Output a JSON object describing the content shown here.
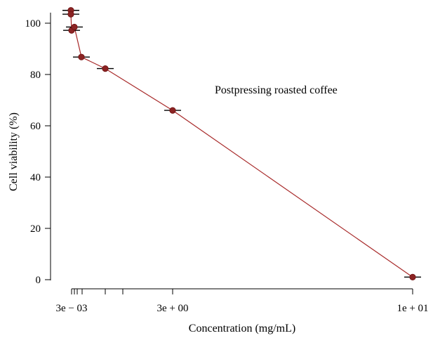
{
  "chart_data": {
    "type": "scatter",
    "title": "",
    "xlabel": "Concentration (mg/mL)",
    "ylabel": "Cell viability (%)",
    "annotation": "Postpressing roasted coffee",
    "ylim": [
      0,
      105
    ],
    "xlim": [
      0.0,
      10.0
    ],
    "yticks": [
      0,
      20,
      40,
      60,
      80,
      100
    ],
    "xticks": [
      {
        "value": 0.003,
        "label": "3e − 03"
      },
      {
        "value": 0.01,
        "label": ""
      },
      {
        "value": 0.03,
        "label": ""
      },
      {
        "value": 0.1,
        "label": ""
      },
      {
        "value": 0.3,
        "label": ""
      },
      {
        "value": 1.0,
        "label": ""
      },
      {
        "value": 3.0,
        "label": "3e + 00"
      },
      {
        "value": 10.0,
        "label": "1e + 01"
      }
    ],
    "series": [
      {
        "color": "#8b2323",
        "line_color": "#a82a2a",
        "points": [
          {
            "x": 0.0,
            "y": 105.0,
            "err": 0.12
          },
          {
            "x": 0.003,
            "y": 103.5,
            "err": 0.12
          },
          {
            "x": 0.01,
            "y": 97.2,
            "err": 0.12
          },
          {
            "x": 0.1,
            "y": 98.5,
            "err": 0.12
          },
          {
            "x": 0.4,
            "y": 86.8,
            "err": 0.12
          },
          {
            "x": 1.4,
            "y": 82.3,
            "err": 0.12
          },
          {
            "x": 4.5,
            "y": 66.0,
            "err": 0.12
          },
          {
            "x": 10.0,
            "y": 1.0,
            "err": 0.12
          }
        ]
      }
    ]
  }
}
